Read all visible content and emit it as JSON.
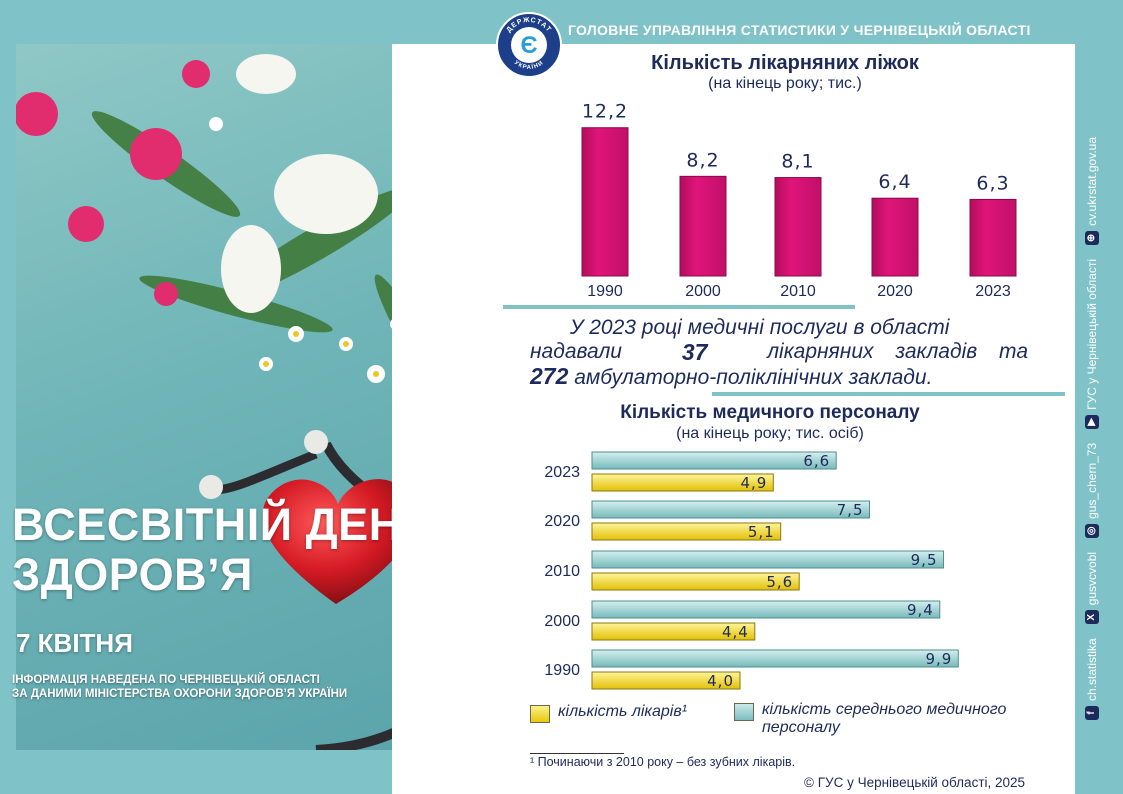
{
  "header": {
    "organization": "ГОЛОВНЕ УПРАВЛІННЯ СТАТИСТИКИ У ЧЕРНІВЕЦЬКІЙ ОБЛАСТІ",
    "logo_text_top": "ДЕРЖСТАТ",
    "logo_text_bottom": "УКРАЇНИ",
    "logo_symbol": "Є"
  },
  "hero": {
    "title_line1": "ВСЕСВІТНІЙ ДЕНЬ",
    "title_line2": "ЗДОРОВ’Я",
    "date": "7 КВІТНЯ",
    "note_line1": "ІНФОРМАЦІЯ НАВЕДЕНА ПО ЧЕРНІВЕЦЬКІЙ ОБЛАСТІ",
    "note_line2": "ЗА ДАНИМИ МІНІСТЕРСТВА ОХОРОНИ ЗДОРОВ’Я УКРАЇНИ"
  },
  "colors": {
    "background": "#7fc3c9",
    "title": "#1d2a5c",
    "bar_beds": "#e0157a",
    "bar_staff": "#93cccd",
    "bar_doctors": "#f3da1f"
  },
  "paragraph": {
    "line1": "У 2023 році медичні послуги в області",
    "line2_a": "надавали",
    "line2_num": "37",
    "line2_b": "лікарняних закладів та",
    "line3_num": "272",
    "line3_b": "амбулаторно-поліклінічних заклади."
  },
  "chart_data": [
    {
      "type": "bar",
      "title": "Кількість лікарняних ліжок",
      "subtitle": "(на кінець року; тис.)",
      "categories": [
        "1990",
        "2000",
        "2010",
        "2020",
        "2023"
      ],
      "values": [
        12.2,
        8.2,
        8.1,
        6.4,
        6.3
      ],
      "value_labels": [
        "12,2",
        "8,2",
        "8,1",
        "6,4",
        "6,3"
      ],
      "ylim": [
        0,
        13
      ]
    },
    {
      "type": "bar",
      "orientation": "horizontal",
      "title": "Кількість медичного персоналу",
      "subtitle": "(на кінець року; тис. осіб)",
      "categories": [
        "2023",
        "2020",
        "2010",
        "2000",
        "1990"
      ],
      "series": [
        {
          "name": "кількість середнього медичного персоналу",
          "values": [
            6.6,
            7.5,
            9.5,
            9.4,
            9.9
          ],
          "labels": [
            "6,6",
            "7,5",
            "9,5",
            "9,4",
            "9,9"
          ]
        },
        {
          "name": "кількість лікарів¹",
          "values": [
            4.9,
            5.1,
            5.6,
            4.4,
            4.0
          ],
          "labels": [
            "4,9",
            "5,1",
            "5,6",
            "4,4",
            "4,0"
          ]
        }
      ],
      "xlim": [
        0,
        10
      ],
      "legend": "bottom"
    }
  ],
  "legend": {
    "doctors_line1": "кількість лікарів¹",
    "staff_line1": "кількість середнього медичного",
    "staff_line2": "персоналу"
  },
  "footnote": "¹ Починаючи з 2010 року – без зубних лікарів.",
  "copyright": "© ГУС у Чернівецькій області, 2025",
  "social": [
    {
      "icon": "facebook-icon",
      "glyph": "f",
      "label": "ch.statistika"
    },
    {
      "icon": "x-icon",
      "glyph": "X",
      "label": "gusvcvobl"
    },
    {
      "icon": "instagram-icon",
      "glyph": "◎",
      "label": "gus_chern_73"
    },
    {
      "icon": "youtube-icon",
      "glyph": "▶",
      "label": "ГУС у Чернівецькій області"
    },
    {
      "icon": "web-icon",
      "glyph": "⊕",
      "label": "cv.ukrstat.gov.ua"
    }
  ]
}
